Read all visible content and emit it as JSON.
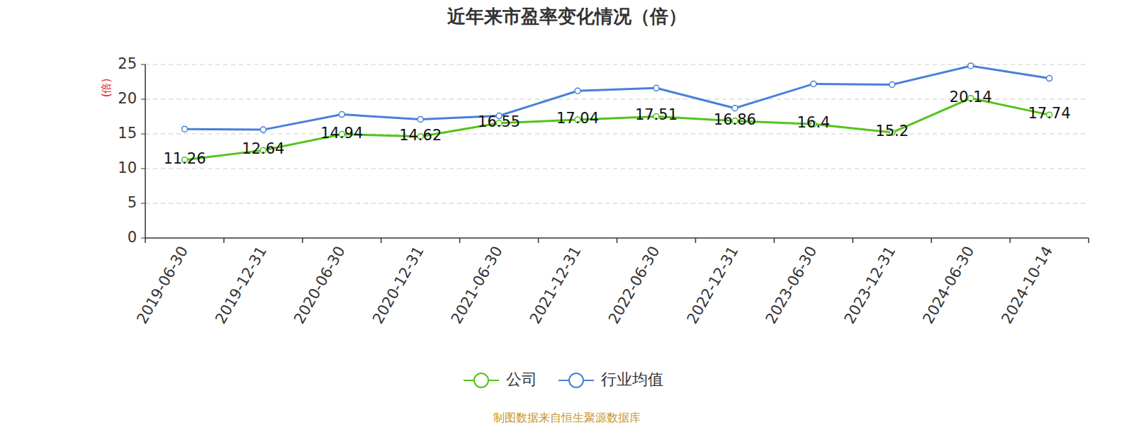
{
  "chart_data": {
    "type": "line",
    "title": "近年来市盈率变化情况（倍）",
    "y_label": "(倍)",
    "source": "制图数据来自恒生聚源数据库",
    "categories": [
      "2019-06-30",
      "2019-12-31",
      "2020-06-30",
      "2020-12-31",
      "2021-06-30",
      "2021-12-31",
      "2022-06-30",
      "2022-12-31",
      "2023-06-30",
      "2023-12-31",
      "2024-06-30",
      "2024-10-14"
    ],
    "series": [
      {
        "name": "公司",
        "color": "#52c41a",
        "marker": "circle",
        "data_labels": true,
        "values": [
          11.26,
          12.64,
          14.94,
          14.62,
          16.55,
          17.04,
          17.51,
          16.86,
          16.4,
          15.2,
          20.14,
          17.74
        ]
      },
      {
        "name": "行业均值",
        "color": "#4a7fdc",
        "marker": "circle",
        "data_labels": false,
        "values": [
          15.7,
          15.6,
          17.8,
          17.1,
          17.6,
          21.2,
          21.6,
          18.7,
          22.2,
          22.1,
          24.8,
          23.0
        ]
      }
    ],
    "ylim": [
      0,
      25
    ],
    "yticks": [
      0,
      5,
      10,
      15,
      20,
      25
    ],
    "grid": true,
    "legend": "bottom"
  }
}
